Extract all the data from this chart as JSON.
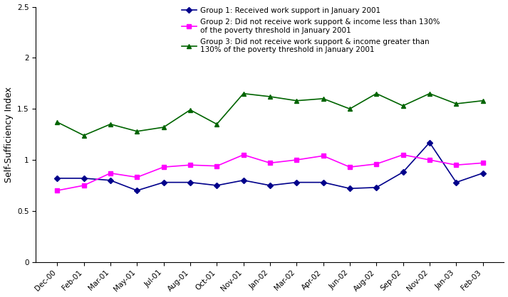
{
  "title": "",
  "ylabel": "Self-Sufficiency Index",
  "xlabels": [
    "Dec-00",
    "Feb-01",
    "Mar-01",
    "May-01",
    "Jul-01",
    "Aug-01",
    "Oct-01",
    "Nov-01",
    "Jan-02",
    "Mar-02",
    "Apr-02",
    "Jun-02",
    "Aug-02",
    "Sep-02",
    "Nov-02",
    "Jan-03",
    "Feb-03"
  ],
  "group1_label": "Group 1: Received work support in January 2001",
  "group2_label": "Group 2: Did not receive work support & income less than 130%\nof the poverty threshold in January 2001",
  "group3_label": "Group 3: Did not receive work support & income greater than\n130% of the poverty threshold in January 2001",
  "group1_color": "#00008B",
  "group2_color": "#FF00FF",
  "group3_color": "#006400",
  "group1_values": [
    0.82,
    0.82,
    0.8,
    0.7,
    0.78,
    0.78,
    0.75,
    0.8,
    0.75,
    0.78,
    0.78,
    0.72,
    0.73,
    0.88,
    1.17,
    0.78,
    0.87
  ],
  "group2_values": [
    0.7,
    0.75,
    0.87,
    0.83,
    0.93,
    0.95,
    0.94,
    1.05,
    0.97,
    1.0,
    1.04,
    0.93,
    0.96,
    1.05,
    1.0,
    0.95,
    0.97
  ],
  "group3_values": [
    1.37,
    1.24,
    1.35,
    1.28,
    1.32,
    1.49,
    1.35,
    1.65,
    1.62,
    1.58,
    1.6,
    1.5,
    1.65,
    1.53,
    1.65,
    1.55,
    1.58
  ],
  "ylim": [
    0,
    2.5
  ],
  "yticks": [
    0,
    0.5,
    1.0,
    1.5,
    2.0,
    2.5
  ],
  "background_color": "#ffffff",
  "legend_fontsize": 7.5,
  "tick_fontsize": 7.5,
  "ylabel_fontsize": 9,
  "linewidth": 1.2,
  "markersize": 4
}
